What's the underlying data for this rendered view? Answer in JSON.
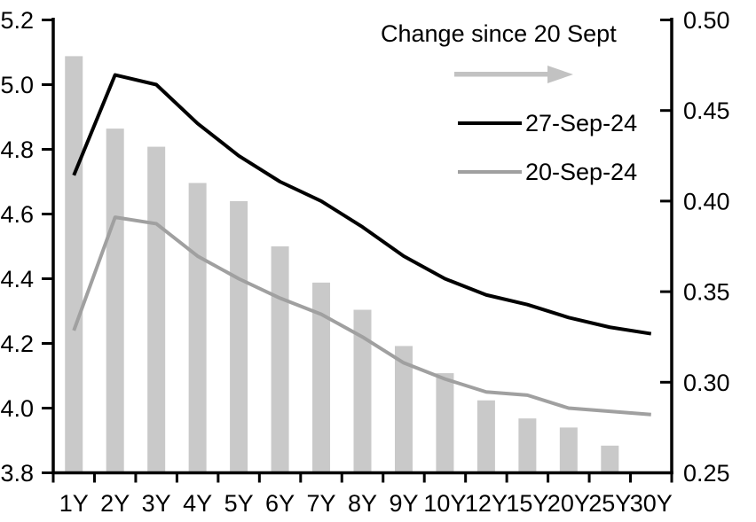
{
  "chart_data": {
    "type": "combo-bar-line",
    "title": "",
    "categories": [
      "1Y",
      "2Y",
      "3Y",
      "4Y",
      "5Y",
      "6Y",
      "7Y",
      "8Y",
      "9Y",
      "10Y",
      "12Y",
      "15Y",
      "20Y",
      "25Y",
      "30Y"
    ],
    "series": [
      {
        "name": "Change since 20 Sept",
        "type": "bar",
        "axis": "right",
        "color": "#c9c9c9",
        "values": [
          0.48,
          0.44,
          0.43,
          0.41,
          0.4,
          0.375,
          0.355,
          0.34,
          0.32,
          0.305,
          0.29,
          0.28,
          0.275,
          0.265,
          0.25
        ]
      },
      {
        "name": "27-Sep-24",
        "type": "line",
        "axis": "left",
        "color": "#000000",
        "values": [
          4.72,
          5.03,
          5.0,
          4.88,
          4.78,
          4.7,
          4.64,
          4.56,
          4.47,
          4.4,
          4.35,
          4.32,
          4.28,
          4.25,
          4.23
        ]
      },
      {
        "name": "20-Sep-24",
        "type": "line",
        "axis": "left",
        "color": "#a0a0a0",
        "values": [
          4.24,
          4.59,
          4.57,
          4.47,
          4.4,
          4.34,
          4.29,
          4.22,
          4.14,
          4.09,
          4.05,
          4.04,
          4.0,
          3.99,
          3.98
        ]
      }
    ],
    "left_axis": {
      "min": 3.8,
      "max": 5.2,
      "step": 0.2,
      "tick_labels": [
        "5.2",
        "5.0",
        "4.8",
        "4.6",
        "4.4",
        "4.2",
        "4.0",
        "3.8"
      ]
    },
    "right_axis": {
      "min": 0.25,
      "max": 0.5,
      "step": 0.05,
      "tick_labels": [
        "0.50",
        "0.45",
        "0.40",
        "0.35",
        "0.30",
        "0.25"
      ]
    },
    "grid": false,
    "legend": {
      "position": "top-center-inside",
      "bar_label": "Change since 20 Sept",
      "line1_label": "27-Sep-24",
      "line2_label": "20-Sep-24",
      "arrow_color": "#c2c2c2"
    },
    "axis_color": "#000000",
    "background_color": "#ffffff"
  }
}
